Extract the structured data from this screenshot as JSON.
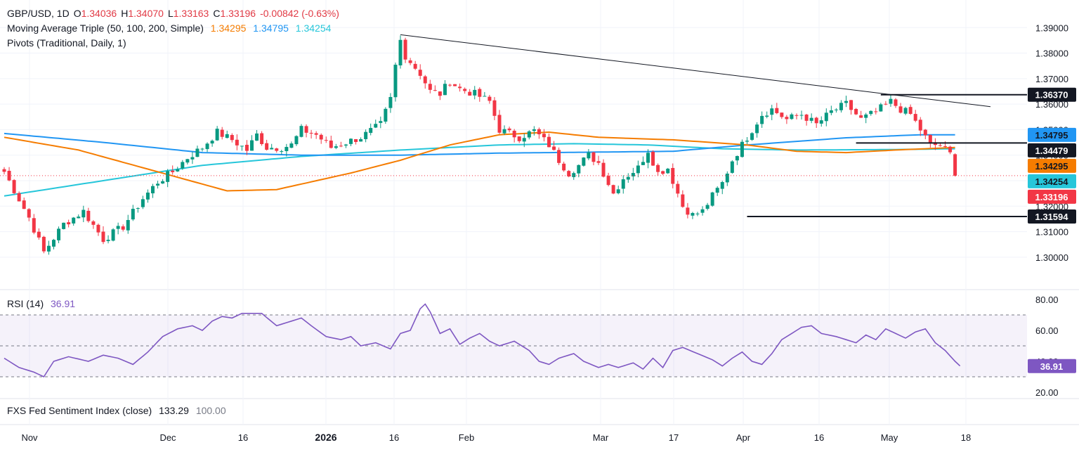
{
  "legend": {
    "symbol": "GBP/USD, 1D",
    "open_label": "O",
    "open": "1.34036",
    "high_label": "H",
    "high": "1.34070",
    "low_label": "L",
    "low": "1.33163",
    "close_label": "C",
    "close": "1.33196",
    "change": "-0.00842 (-0.63%)",
    "ma_title": "Moving Average Triple (50, 100, 200, Simple)",
    "ma50": "1.34295",
    "ma100": "1.34795",
    "ma200": "1.34254",
    "pivots_title": "Pivots (Traditional, Daily, 1)",
    "rsi_title": "RSI (14)",
    "rsi_value": "36.91",
    "fxs_title": "FXS Fed Sentiment Index (close)",
    "fxs_value": "133.29",
    "fxs_value2": "100.00"
  },
  "colors": {
    "up": "#089981",
    "down": "#f23645",
    "ma50": "#f57c00",
    "ma100": "#2196f3",
    "ma200": "#26c6da",
    "rsi": "#7e57c2",
    "trendline": "#131722"
  },
  "chart_data": {
    "type": "candlestick",
    "price_axis": {
      "min": 1.295,
      "max": 1.392,
      "ticks": [
        "1.39000",
        "1.38000",
        "1.37000",
        "1.36000",
        "1.35000",
        "1.34000",
        "1.33000",
        "1.32000",
        "1.31000",
        "1.30000"
      ]
    },
    "time_axis": [
      "Nov",
      "Dec",
      "16",
      "2026",
      "16",
      "Feb",
      "Mar",
      "17",
      "Apr",
      "16",
      "May",
      "18"
    ],
    "price_labels": [
      {
        "value": "1.36370",
        "kind": "pivot"
      },
      {
        "value": "1.34795",
        "kind": "ma100"
      },
      {
        "value": "1.34479",
        "kind": "pivot"
      },
      {
        "value": "1.34295",
        "kind": "ma50"
      },
      {
        "value": "1.34254",
        "kind": "ma200"
      },
      {
        "value": "1.33196",
        "kind": "last"
      },
      {
        "value": "1.31594",
        "kind": "pivot"
      }
    ],
    "rsi": {
      "min": 20,
      "max": 80,
      "ticks": [
        "80.00",
        "60.00",
        "40.00",
        "20.00"
      ],
      "bands": [
        70,
        50,
        30
      ],
      "last": "36.91",
      "anchors": [
        [
          0,
          42
        ],
        [
          3,
          36
        ],
        [
          6,
          33
        ],
        [
          8,
          30
        ],
        [
          10,
          40
        ],
        [
          13,
          43
        ],
        [
          17,
          40
        ],
        [
          20,
          44
        ],
        [
          23,
          42
        ],
        [
          26,
          38
        ],
        [
          29,
          46
        ],
        [
          32,
          56
        ],
        [
          35,
          61
        ],
        [
          38,
          63
        ],
        [
          40,
          60
        ],
        [
          42,
          66
        ],
        [
          44,
          69
        ],
        [
          46,
          68
        ],
        [
          48,
          71
        ],
        [
          52,
          71
        ],
        [
          55,
          63
        ],
        [
          58,
          66
        ],
        [
          60,
          68
        ],
        [
          62,
          63
        ],
        [
          65,
          56
        ],
        [
          68,
          54
        ],
        [
          70,
          56
        ],
        [
          72,
          50
        ],
        [
          75,
          52
        ],
        [
          78,
          48
        ],
        [
          80,
          58
        ],
        [
          82,
          60
        ],
        [
          84,
          74
        ],
        [
          85,
          77
        ],
        [
          86,
          72
        ],
        [
          88,
          58
        ],
        [
          90,
          61
        ],
        [
          92,
          51
        ],
        [
          94,
          55
        ],
        [
          96,
          58
        ],
        [
          98,
          53
        ],
        [
          100,
          50
        ],
        [
          103,
          53
        ],
        [
          106,
          47
        ],
        [
          108,
          40
        ],
        [
          110,
          38
        ],
        [
          112,
          42
        ],
        [
          115,
          45
        ],
        [
          117,
          40
        ],
        [
          120,
          36
        ],
        [
          122,
          38
        ],
        [
          124,
          36
        ],
        [
          127,
          39
        ],
        [
          129,
          35
        ],
        [
          131,
          42
        ],
        [
          133,
          36
        ],
        [
          135,
          47
        ],
        [
          137,
          49
        ],
        [
          140,
          45
        ],
        [
          143,
          41
        ],
        [
          145,
          37
        ],
        [
          147,
          42
        ],
        [
          149,
          46
        ],
        [
          151,
          40
        ],
        [
          153,
          38
        ],
        [
          155,
          45
        ],
        [
          157,
          54
        ],
        [
          159,
          58
        ],
        [
          161,
          62
        ],
        [
          163,
          63
        ],
        [
          165,
          58
        ],
        [
          168,
          56
        ],
        [
          170,
          54
        ],
        [
          172,
          52
        ],
        [
          174,
          57
        ],
        [
          176,
          54
        ],
        [
          178,
          61
        ],
        [
          180,
          58
        ],
        [
          182,
          55
        ],
        [
          184,
          59
        ],
        [
          186,
          61
        ],
        [
          188,
          52
        ],
        [
          190,
          47
        ],
        [
          192,
          40
        ],
        [
          193,
          37
        ]
      ]
    },
    "candles_anchor_closes": [
      [
        0,
        1.3335
      ],
      [
        5,
        1.3155
      ],
      [
        8,
        1.302
      ],
      [
        12,
        1.313
      ],
      [
        16,
        1.318
      ],
      [
        20,
        1.307
      ],
      [
        24,
        1.312
      ],
      [
        28,
        1.323
      ],
      [
        31,
        1.3295
      ],
      [
        34,
        1.3335
      ],
      [
        37,
        1.339
      ],
      [
        40,
        1.343
      ],
      [
        43,
        1.349
      ],
      [
        46,
        1.346
      ],
      [
        49,
        1.342
      ],
      [
        51,
        1.348
      ],
      [
        53,
        1.343
      ],
      [
        56,
        1.343
      ],
      [
        58,
        1.344
      ],
      [
        60,
        1.35
      ],
      [
        63,
        1.348
      ],
      [
        66,
        1.343
      ],
      [
        69,
        1.345
      ],
      [
        72,
        1.347
      ],
      [
        76,
        1.352
      ],
      [
        78,
        1.362
      ],
      [
        79,
        1.375
      ],
      [
        80,
        1.385
      ],
      [
        81,
        1.379
      ],
      [
        84,
        1.372
      ],
      [
        86,
        1.365
      ],
      [
        88,
        1.364
      ],
      [
        90,
        1.369
      ],
      [
        92,
        1.366
      ],
      [
        95,
        1.364
      ],
      [
        98,
        1.361
      ],
      [
        100,
        1.35
      ],
      [
        104,
        1.347
      ],
      [
        107,
        1.3495
      ],
      [
        110,
        1.344
      ],
      [
        112,
        1.338
      ],
      [
        114,
        1.333
      ],
      [
        116,
        1.336
      ],
      [
        118,
        1.34
      ],
      [
        120,
        1.337
      ],
      [
        123,
        1.325
      ],
      [
        125,
        1.331
      ],
      [
        128,
        1.335
      ],
      [
        130,
        1.342
      ],
      [
        132,
        1.333
      ],
      [
        134,
        1.335
      ],
      [
        137,
        1.32
      ],
      [
        139,
        1.3165
      ],
      [
        141,
        1.318
      ],
      [
        143,
        1.324
      ],
      [
        145,
        1.329
      ],
      [
        147,
        1.338
      ],
      [
        149,
        1.344
      ],
      [
        151,
        1.35
      ],
      [
        153,
        1.356
      ],
      [
        155,
        1.358
      ],
      [
        158,
        1.354
      ],
      [
        161,
        1.356
      ],
      [
        164,
        1.352
      ],
      [
        167,
        1.357
      ],
      [
        170,
        1.36
      ],
      [
        173,
        1.354
      ],
      [
        176,
        1.357
      ],
      [
        179,
        1.361
      ],
      [
        181,
        1.358
      ],
      [
        183,
        1.356
      ],
      [
        185,
        1.35
      ],
      [
        187,
        1.344
      ],
      [
        189,
        1.344
      ],
      [
        191,
        1.3404
      ],
      [
        192,
        1.332
      ]
    ]
  }
}
